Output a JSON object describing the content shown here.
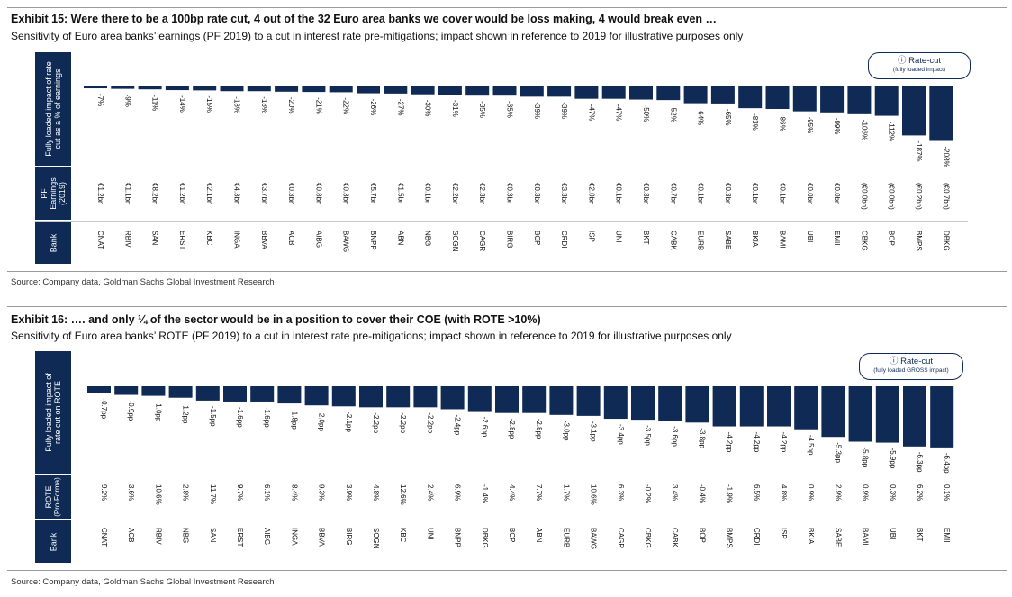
{
  "exhibit15": {
    "title": "Exhibit 15: Were there to be a 100bp rate cut, 4 out of the 32 Euro area banks we cover would be loss making, 4 would break even …",
    "subtitle": "Sensitivity of Euro area banks’ earnings (PF 2019) to a cut in interest rate pre-mitigations; impact shown in reference to 2019 for illustrative purposes only",
    "row_label_impact_1": "Fully loaded impact of rate",
    "row_label_impact_2": "cut as a % of earnings",
    "row_label_pf_1": "PF",
    "row_label_pf_2": "Earnings",
    "row_label_pf_3": "(2019)",
    "row_label_bank": "Bank",
    "box_title": "Rate-cut",
    "box_sub": "(fully loaded impact)",
    "source": "Source: Company data, Goldman Sachs Global Investment Research"
  },
  "exhibit16": {
    "title": "Exhibit 16: …. and only ¼ of the sector would be in a position to cover their COE (with ROTE >10%)",
    "subtitle": "Sensitivity of Euro area banks’ ROTE (PF 2019) to a cut in interest rate pre-mitigations; impact shown in reference to 2019 for illustrative purposes only",
    "row_label_impact_1": "Fully loaded impact of",
    "row_label_impact_2": "rate cut on ROTE",
    "row_label_rote_1": "ROTE",
    "row_label_rote_2": "(Pro-Forma)",
    "row_label_bank": "Bank",
    "box_title": "Rate-cut",
    "box_sub": "(fully loaded GROSS impact)",
    "source": "Source: Company data, Goldman Sachs Global Investment Research"
  },
  "colors": {
    "bar": "#0e2a55",
    "band": "#0e2a55"
  },
  "icons": {
    "box_icon": "info-circle-icon"
  },
  "chart_data": [
    {
      "type": "bar",
      "title": "Exhibit 15: Were there to be a 100bp rate cut, 4 out of the 32 Euro area banks we cover would be loss making, 4 would break even …",
      "ylabel": "Fully loaded impact of rate cut as a % of earnings",
      "categories": [
        "CNAT",
        "RBIV",
        "SAN",
        "ERST",
        "KBC",
        "INGA",
        "BBVA",
        "ACB",
        "AIBG",
        "BAWG",
        "BNPP",
        "ABN",
        "NBG",
        "SOGN",
        "CAGR",
        "BIRG",
        "BCP",
        "CRDI",
        "ISP",
        "UNI",
        "BKT",
        "CABK",
        "EURB",
        "SABE",
        "BKIA",
        "BAMI",
        "UBI",
        "EMII",
        "CBKG",
        "BOP",
        "BMPS",
        "DBKG"
      ],
      "values": [
        -7,
        -9,
        -11,
        -14,
        -15,
        -18,
        -18,
        -20,
        -21,
        -22,
        -26,
        -27,
        -30,
        -31,
        -35,
        -35,
        -39,
        -39,
        -47,
        -47,
        -50,
        -52,
        -64,
        -65,
        -83,
        -86,
        -95,
        -99,
        -106,
        -112,
        -187,
        -208
      ],
      "value_labels": [
        "-7%",
        "-9%",
        "-11%",
        "-14%",
        "-15%",
        "-18%",
        "-18%",
        "-20%",
        "-21%",
        "-22%",
        "-26%",
        "-27%",
        "-30%",
        "-31%",
        "-35%",
        "-35%",
        "-39%",
        "-39%",
        "-47%",
        "-47%",
        "-50%",
        "-52%",
        "-64%",
        "-65%",
        "-83%",
        "-86%",
        "-95%",
        "-99%",
        "-106%",
        "-112%",
        "-187%",
        "-208%"
      ],
      "pf_earnings": [
        "€1.2bn",
        "€1.1bn",
        "€8.2bn",
        "€1.2bn",
        "€2.1bn",
        "€4.3bn",
        "€3.7bn",
        "€0.3bn",
        "€0.8bn",
        "€0.3bn",
        "€5.7bn",
        "€1.5bn",
        "€0.1bn",
        "€2.2bn",
        "€2.3bn",
        "€0.3bn",
        "€0.3bn",
        "€3.3bn",
        "€2.0bn",
        "€0.1bn",
        "€0.3bn",
        "€0.7bn",
        "€0.1bn",
        "€0.3bn",
        "€0.1bn",
        "€0.1bn",
        "€0.0bn",
        "€0.0bn",
        "(€0.0bn)",
        "(€0.0bn)",
        "(€0.2bn)",
        "(€0.7bn)"
      ],
      "ylim": [
        -220,
        0
      ]
    },
    {
      "type": "bar",
      "title": "Exhibit 16: …. and only ¼ of the sector would be in a position to cover their COE (with ROTE >10%)",
      "ylabel": "Fully loaded impact of rate cut on ROTE",
      "categories": [
        "CNAT",
        "ACB",
        "RBIV",
        "NBG",
        "SAN",
        "ERST",
        "AIBG",
        "INGA",
        "BBVA",
        "BIRG",
        "SOGN",
        "KBC",
        "UNI",
        "BNPP",
        "DBKG",
        "BCP",
        "ABN",
        "EURB",
        "BAWG",
        "CAGR",
        "CBKG",
        "CABK",
        "BOP",
        "BMPS",
        "CRDI",
        "ISP",
        "BKIA",
        "SABE",
        "BAMI",
        "UBI",
        "BKT",
        "EMII"
      ],
      "values": [
        -0.7,
        -0.9,
        -1.0,
        -1.2,
        -1.5,
        -1.6,
        -1.6,
        -1.8,
        -2.0,
        -2.1,
        -2.2,
        -2.2,
        -2.2,
        -2.4,
        -2.6,
        -2.8,
        -2.8,
        -3.0,
        -3.1,
        -3.4,
        -3.5,
        -3.6,
        -3.8,
        -4.2,
        -4.2,
        -4.2,
        -4.5,
        -5.3,
        -5.8,
        -5.9,
        -6.3,
        -6.4
      ],
      "value_labels": [
        "-0.7pp",
        "-0.9pp",
        "-1.0pp",
        "-1.2pp",
        "-1.5pp",
        "-1.6pp",
        "-1.6pp",
        "-1.8pp",
        "-2.0pp",
        "-2.1pp",
        "-2.2pp",
        "-2.2pp",
        "-2.2pp",
        "-2.4pp",
        "-2.6pp",
        "-2.8pp",
        "-2.8pp",
        "-3.0pp",
        "-3.1pp",
        "-3.4pp",
        "-3.5pp",
        "-3.6pp",
        "-3.8pp",
        "-4.2pp",
        "-4.2pp",
        "-4.2pp",
        "-4.5pp",
        "-5.3pp",
        "-5.8pp",
        "-5.9pp",
        "-6.3pp",
        "-6.4pp"
      ],
      "rote": [
        "9.2%",
        "3.6%",
        "10.6%",
        "2.8%",
        "11.7%",
        "9.7%",
        "6.1%",
        "8.4%",
        "9.3%",
        "3.9%",
        "4.8%",
        "12.6%",
        "2.4%",
        "6.9%",
        "-1.4%",
        "4.4%",
        "7.7%",
        "1.7%",
        "10.6%",
        "6.3%",
        "-0.2%",
        "3.4%",
        "-0.4%",
        "-1.9%",
        "6.5%",
        "4.8%",
        "0.9%",
        "2.9%",
        "0.9%",
        "0.3%",
        "6.2%",
        "0.1%"
      ],
      "ylim": [
        -6.6,
        0
      ]
    }
  ]
}
